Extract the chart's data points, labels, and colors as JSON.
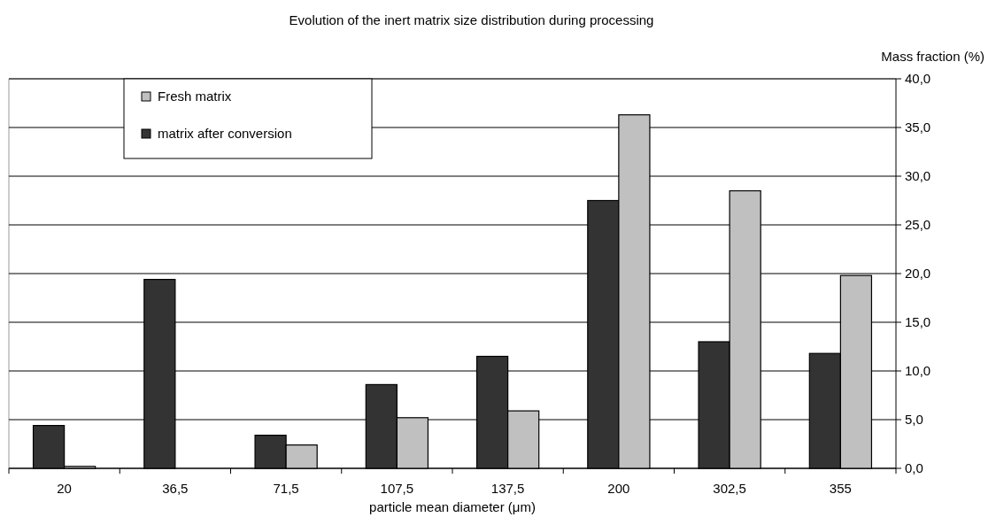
{
  "chart_data": {
    "type": "bar",
    "title": "Evolution of the inert matrix size distribution during processing",
    "xlabel": "particle mean diameter (μm)",
    "ylabel": "Mass fraction (%)",
    "categories": [
      "20",
      "36,5",
      "71,5",
      "107,5",
      "137,5",
      "200",
      "302,5",
      "355"
    ],
    "series": [
      {
        "name": "matrix after conversion",
        "color": "#333333",
        "values": [
          4.4,
          19.4,
          3.4,
          8.6,
          11.5,
          27.5,
          13.0,
          11.8
        ]
      },
      {
        "name": "Fresh matrix",
        "color": "#c0c0c0",
        "values": [
          0.2,
          0,
          2.4,
          5.2,
          5.9,
          36.3,
          28.5,
          19.8
        ]
      }
    ],
    "ylim": [
      0,
      40
    ],
    "yticks": [
      {
        "value": 0,
        "label": "0,0"
      },
      {
        "value": 5,
        "label": "5,0"
      },
      {
        "value": 10,
        "label": "10,0"
      },
      {
        "value": 15,
        "label": "15,0"
      },
      {
        "value": 20,
        "label": "20,0"
      },
      {
        "value": 25,
        "label": "25,0"
      },
      {
        "value": 30,
        "label": "30,0"
      },
      {
        "value": 35,
        "label": "35,0"
      },
      {
        "value": 40,
        "label": "40,0"
      }
    ],
    "grid": "y",
    "legend": "top left"
  }
}
